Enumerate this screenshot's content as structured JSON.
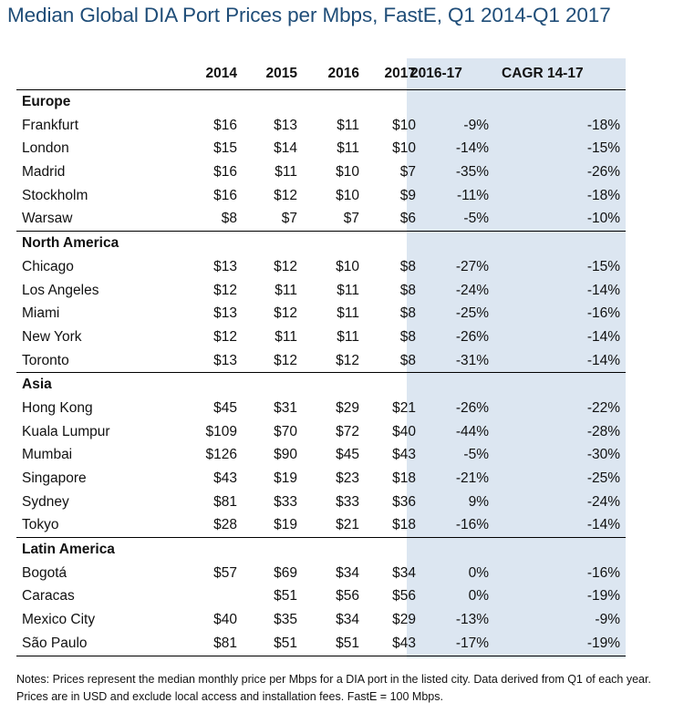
{
  "title": "Median Global DIA Port Prices per Mbps, FastE, Q1 2014-Q1 2017",
  "headers": {
    "y2014": "2014",
    "y2015": "2015",
    "y2016": "2016",
    "y2017": "2017",
    "change": "2016-17",
    "cagr": "CAGR 14-17"
  },
  "regions": [
    {
      "name": "Europe",
      "rows": [
        {
          "city": "Frankfurt",
          "y2014": "$16",
          "y2015": "$13",
          "y2016": "$11",
          "y2017": "$10",
          "change": "-9%",
          "cagr": "-18%"
        },
        {
          "city": "London",
          "y2014": "$15",
          "y2015": "$14",
          "y2016": "$11",
          "y2017": "$10",
          "change": "-14%",
          "cagr": "-15%"
        },
        {
          "city": "Madrid",
          "y2014": "$16",
          "y2015": "$11",
          "y2016": "$10",
          "y2017": "$7",
          "change": "-35%",
          "cagr": "-26%"
        },
        {
          "city": "Stockholm",
          "y2014": "$16",
          "y2015": "$12",
          "y2016": "$10",
          "y2017": "$9",
          "change": "-11%",
          "cagr": "-18%"
        },
        {
          "city": "Warsaw",
          "y2014": "$8",
          "y2015": "$7",
          "y2016": "$7",
          "y2017": "$6",
          "change": "-5%",
          "cagr": "-10%"
        }
      ]
    },
    {
      "name": "North America",
      "rows": [
        {
          "city": "Chicago",
          "y2014": "$13",
          "y2015": "$12",
          "y2016": "$10",
          "y2017": "$8",
          "change": "-27%",
          "cagr": "-15%"
        },
        {
          "city": "Los Angeles",
          "y2014": "$12",
          "y2015": "$11",
          "y2016": "$11",
          "y2017": "$8",
          "change": "-24%",
          "cagr": "-14%"
        },
        {
          "city": "Miami",
          "y2014": "$13",
          "y2015": "$12",
          "y2016": "$11",
          "y2017": "$8",
          "change": "-25%",
          "cagr": "-16%"
        },
        {
          "city": "New York",
          "y2014": "$12",
          "y2015": "$11",
          "y2016": "$11",
          "y2017": "$8",
          "change": "-26%",
          "cagr": "-14%"
        },
        {
          "city": "Toronto",
          "y2014": "$13",
          "y2015": "$12",
          "y2016": "$12",
          "y2017": "$8",
          "change": "-31%",
          "cagr": "-14%"
        }
      ]
    },
    {
      "name": "Asia",
      "rows": [
        {
          "city": "Hong Kong",
          "y2014": "$45",
          "y2015": "$31",
          "y2016": "$29",
          "y2017": "$21",
          "change": "-26%",
          "cagr": "-22%"
        },
        {
          "city": "Kuala Lumpur",
          "y2014": "$109",
          "y2015": "$70",
          "y2016": "$72",
          "y2017": "$40",
          "change": "-44%",
          "cagr": "-28%"
        },
        {
          "city": "Mumbai",
          "y2014": "$126",
          "y2015": "$90",
          "y2016": "$45",
          "y2017": "$43",
          "change": "-5%",
          "cagr": "-30%"
        },
        {
          "city": "Singapore",
          "y2014": "$43",
          "y2015": "$19",
          "y2016": "$23",
          "y2017": "$18",
          "change": "-21%",
          "cagr": "-25%"
        },
        {
          "city": "Sydney",
          "y2014": "$81",
          "y2015": "$33",
          "y2016": "$33",
          "y2017": "$36",
          "change": "9%",
          "cagr": "-24%"
        },
        {
          "city": "Tokyo",
          "y2014": "$28",
          "y2015": "$19",
          "y2016": "$21",
          "y2017": "$18",
          "change": "-16%",
          "cagr": "-14%"
        }
      ]
    },
    {
      "name": "Latin America",
      "rows": [
        {
          "city": "Bogotá",
          "y2014": "$57",
          "y2015": "$69",
          "y2016": "$34",
          "y2017": "$34",
          "change": "0%",
          "cagr": "-16%"
        },
        {
          "city": "Caracas",
          "y2014": "",
          "y2015": "$51",
          "y2016": "$56",
          "y2017": "$56",
          "change": "0%",
          "cagr": "-19%"
        },
        {
          "city": "Mexico City",
          "y2014": "$40",
          "y2015": "$35",
          "y2016": "$34",
          "y2017": "$29",
          "change": "-13%",
          "cagr": "-9%"
        },
        {
          "city": "São Paulo",
          "y2014": "$81",
          "y2015": "$51",
          "y2016": "$51",
          "y2017": "$43",
          "change": "-17%",
          "cagr": "-19%"
        }
      ]
    }
  ],
  "notes": "Notes: Prices represent the median monthly price per Mbps for a DIA port in the listed city. Data derived from Q1 of each year. Prices are in USD and exclude local access and installation fees. FastE = 100 Mbps.",
  "colors": {
    "title": "#1f4d78",
    "shade": "#dce6f1"
  }
}
